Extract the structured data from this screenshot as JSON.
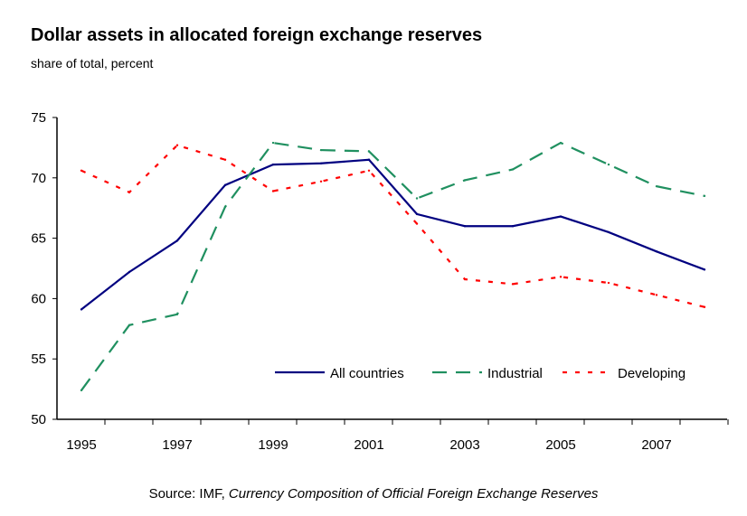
{
  "chart_data": {
    "type": "line",
    "title": "Dollar assets in allocated foreign exchange reserves",
    "subtitle": "share of total, percent",
    "x": [
      1995,
      1996,
      1997,
      1998,
      1999,
      2000,
      2001,
      2002,
      2003,
      2004,
      2005,
      2006,
      2007,
      2008
    ],
    "x_tick_labels": [
      "1995",
      "1997",
      "1999",
      "2001",
      "2003",
      "2005",
      "2007"
    ],
    "y_tick_labels": [
      "50",
      "55",
      "60",
      "65",
      "70",
      "75"
    ],
    "ylim": [
      50,
      75
    ],
    "grid": false,
    "legend_placement": "bottom-right",
    "series": [
      {
        "name": "All countries",
        "color": "#000080",
        "style": "solid",
        "values": [
          59.1,
          62.2,
          64.8,
          69.4,
          71.1,
          71.2,
          71.5,
          67.0,
          66.0,
          66.0,
          66.8,
          65.5,
          63.9,
          62.4
        ]
      },
      {
        "name": "Industrial",
        "color": "#209060",
        "style": "dashed",
        "values": [
          52.4,
          57.8,
          58.7,
          67.6,
          72.9,
          72.3,
          72.2,
          68.3,
          69.8,
          70.7,
          72.9,
          71.1,
          69.3,
          68.5
        ]
      },
      {
        "name": "Developing",
        "color": "#ff0000",
        "style": "dotted",
        "values": [
          70.6,
          68.8,
          72.7,
          71.5,
          68.9,
          69.7,
          70.6,
          66.2,
          61.6,
          61.2,
          61.8,
          61.3,
          60.3,
          59.3
        ]
      }
    ]
  },
  "source": {
    "prefix": "Source:  IMF, ",
    "title": "Currency Composition of Official Foreign Exchange Reserves"
  }
}
